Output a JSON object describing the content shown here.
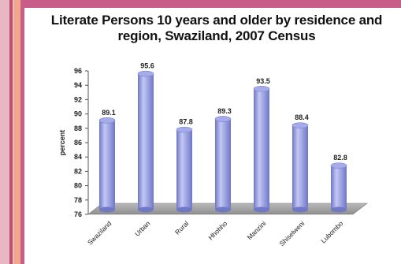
{
  "chart_data": {
    "type": "bar",
    "title": "Literate Persons 10 years and older by residence and region, Swaziland, 2007 Census",
    "xlabel": "",
    "ylabel": "percent",
    "ylim": [
      76,
      96
    ],
    "yticks": [
      76,
      78,
      80,
      82,
      84,
      86,
      88,
      90,
      92,
      94,
      96
    ],
    "categories": [
      "Swaziland",
      "Urban",
      "Rural",
      "Hhohho",
      "Manzini",
      "Shiselweni",
      "Lubombo"
    ],
    "values": [
      89.1,
      95.6,
      87.8,
      89.3,
      93.5,
      88.4,
      82.8
    ],
    "value_labels": [
      "89.1",
      "95.6",
      "87.8",
      "89.3",
      "93.5",
      "88.4",
      "82.8"
    ],
    "bar_style": "3d-cylinder",
    "bar_color": "#8f96dc",
    "floor_color": "#a4a4a4",
    "grid": false,
    "legend": "none"
  }
}
